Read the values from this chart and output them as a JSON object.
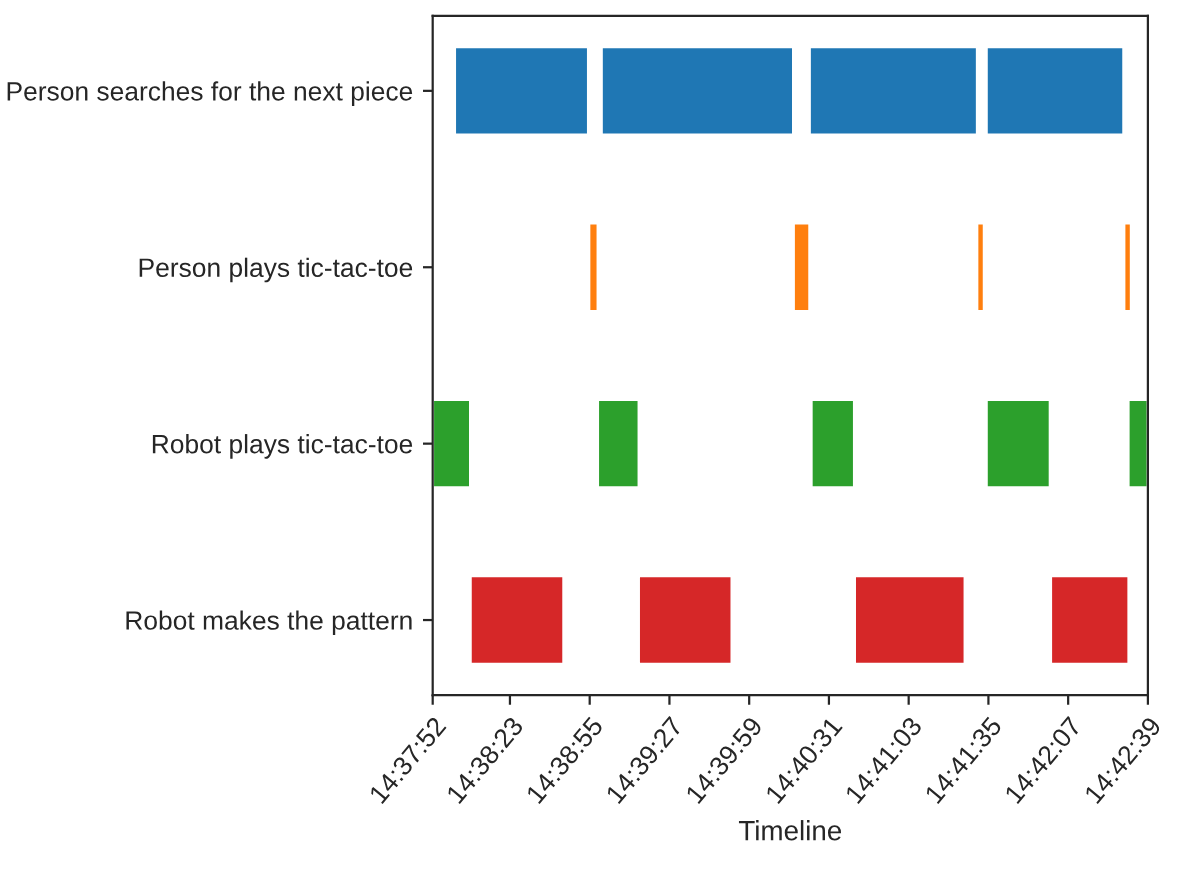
{
  "chart_data": {
    "type": "bar",
    "orientation": "horizontal",
    "xlabel": "Timeline",
    "categories": [
      "Person searches for the next piece",
      "Person plays tic-tac-toe",
      "Robot plays tic-tac-toe",
      "Robot makes the pattern"
    ],
    "series": [
      {
        "colors": [
          "#1f77b4",
          "#ff7f0e",
          "#2ca02c",
          "#d62728"
        ],
        "base": [
          14.63356,
          14.64853,
          14.63111,
          14.63531
        ],
        "values": [
          0.0149,
          0.001,
          0.0042,
          0.0104
        ]
      },
      {
        "colors": [
          "#1f77b4",
          "#ff7f0e",
          "#2ca02c",
          "#d62728"
        ],
        "base": [
          14.64992,
          14.67133,
          14.6495,
          14.65406
        ],
        "values": [
          0.0214,
          0.0018,
          0.0046,
          0.0104
        ]
      },
      {
        "colors": [
          "#1f77b4",
          "#ff7f0e",
          "#2ca02c",
          "#d62728"
        ],
        "base": [
          14.67311,
          14.69178,
          14.67331,
          14.67814
        ],
        "values": [
          0.0187,
          0.0008,
          0.0048,
          0.0123
        ]
      },
      {
        "colors": [
          "#1f77b4",
          "#ff7f0e",
          "#2ca02c",
          "#d62728"
        ],
        "base": [
          14.69283,
          14.70817,
          14.69283,
          14.7
        ],
        "values": [
          0.0153,
          0.0008,
          0.0071,
          0.0087
        ]
      },
      {
        "colors": [
          null,
          null,
          "#2ca02c",
          null
        ],
        "base": [
          null,
          null,
          14.70864,
          null
        ],
        "values": [
          null,
          null,
          0.0022,
          null
        ]
      }
    ],
    "xlim": [
      14.631111,
      14.710833
    ],
    "xticks": [
      {
        "value": 14.631111,
        "label": "14:37:52"
      },
      {
        "value": 14.639722,
        "label": "14:38:23"
      },
      {
        "value": 14.648611,
        "label": "14:38:55"
      },
      {
        "value": 14.6575,
        "label": "14:39:27"
      },
      {
        "value": 14.666389,
        "label": "14:39:59"
      },
      {
        "value": 14.675278,
        "label": "14:40:31"
      },
      {
        "value": 14.684167,
        "label": "14:41:03"
      },
      {
        "value": 14.693056,
        "label": "14:41:35"
      },
      {
        "value": 14.701944,
        "label": "14:42:07"
      },
      {
        "value": 14.710833,
        "label": "14:42:39"
      }
    ],
    "grid": false,
    "legend": false
  }
}
